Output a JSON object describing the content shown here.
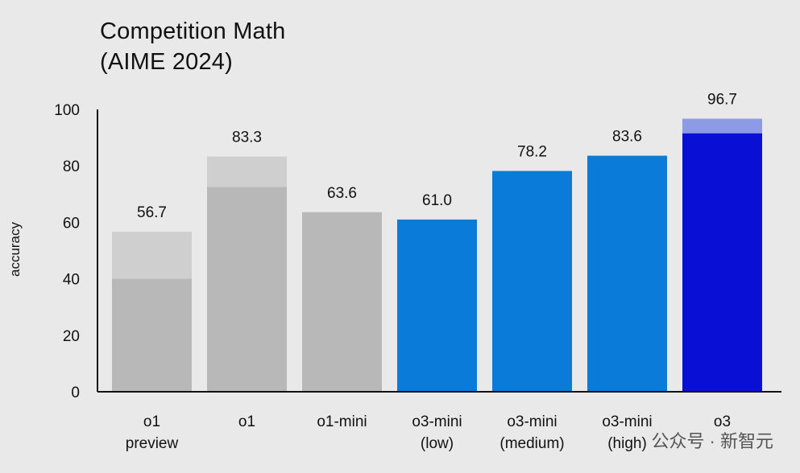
{
  "chart_data": {
    "type": "bar",
    "title": "Competition Math",
    "subtitle": "(AIME 2024)",
    "ylabel": "accuracy",
    "xlabel": "",
    "ylim": [
      0,
      100
    ],
    "yticks": [
      0,
      20,
      40,
      60,
      80,
      100
    ],
    "grid": false,
    "legend": "none",
    "categories": [
      [
        "o1",
        "preview"
      ],
      [
        "o1"
      ],
      [
        "o1-mini"
      ],
      [
        "o3-mini",
        "(low)"
      ],
      [
        "o3-mini",
        "(medium)"
      ],
      [
        "o3-mini",
        "(high)"
      ],
      [
        "o3"
      ]
    ],
    "values": [
      56.7,
      83.3,
      63.6,
      61.0,
      78.2,
      83.6,
      96.7
    ],
    "value_labels": [
      "56.7",
      "83.3",
      "63.6",
      "61.0",
      "78.2",
      "83.6",
      "96.7"
    ],
    "inner_values": [
      40.0,
      72.5,
      null,
      null,
      null,
      null,
      91.5
    ],
    "colors": {
      "main": [
        "#b8b8b8",
        "#b8b8b8",
        "#b8b8b8",
        "#0a7bd8",
        "#0a7bd8",
        "#0a7bd8",
        "#0a0fd6"
      ],
      "light": [
        "#cfcfcf",
        "#cfcfcf",
        null,
        null,
        null,
        null,
        "#8d9ae6"
      ]
    }
  },
  "watermark": "公众号 · 新智元"
}
